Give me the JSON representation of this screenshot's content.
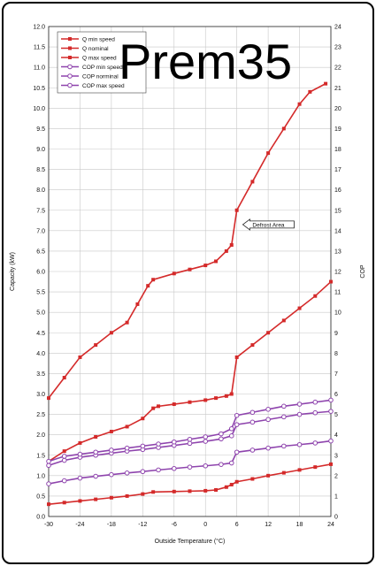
{
  "watermark": "Prem35",
  "chart_data": {
    "type": "line",
    "title": "",
    "xlabel": "Outside Temperature (°C)",
    "ylabel": "Capacity (kW)",
    "y2label": "COP",
    "xlim": [
      -30,
      24
    ],
    "ylim": [
      0,
      12
    ],
    "y2lim": [
      0,
      24
    ],
    "x_ticks": [
      "-30",
      "-24",
      "-18",
      "-12",
      "-6",
      "0",
      "6",
      "12",
      "18",
      "24"
    ],
    "y_ticks": [
      "0.0",
      "0.5",
      "1.0",
      "1.5",
      "2.0",
      "2.5",
      "3.0",
      "3.5",
      "4.0",
      "4.5",
      "5.0",
      "5.5",
      "6.0",
      "6.5",
      "7.0",
      "7.5",
      "8.0",
      "8.5",
      "9.0",
      "9.5",
      "10.0",
      "10.5",
      "11.0",
      "11.5",
      "12.0"
    ],
    "y2_ticks": [
      "0",
      "1",
      "2",
      "3",
      "4",
      "5",
      "6",
      "7",
      "8",
      "9",
      "10",
      "11",
      "12",
      "13",
      "14",
      "15",
      "16",
      "17",
      "18",
      "19",
      "20",
      "21",
      "22",
      "23",
      "24"
    ],
    "grid": true,
    "legend_position": "top-left",
    "annotation": "Defrost Area",
    "series": [
      {
        "name": "Q min speed",
        "axis": "left",
        "marker": "filled-square",
        "color": "#d42a2a",
        "x": [
          -30,
          -27,
          -24,
          -21,
          -18,
          -15,
          -12,
          -10,
          -6,
          -3,
          0,
          2,
          4,
          5,
          6,
          9,
          12,
          15,
          18,
          21,
          24
        ],
        "y": [
          0.3,
          0.34,
          0.38,
          0.42,
          0.46,
          0.5,
          0.55,
          0.6,
          0.61,
          0.62,
          0.63,
          0.65,
          0.72,
          0.78,
          0.85,
          0.92,
          1.0,
          1.07,
          1.14,
          1.21,
          1.28
        ]
      },
      {
        "name": "Q nominal",
        "axis": "left",
        "marker": "filled-square",
        "color": "#d42a2a",
        "x": [
          -30,
          -27,
          -24,
          -21,
          -18,
          -15,
          -12,
          -10,
          -9,
          -6,
          -3,
          0,
          2,
          4,
          5,
          6,
          9,
          12,
          15,
          18,
          21,
          24
        ],
        "y": [
          1.35,
          1.6,
          1.8,
          1.95,
          2.08,
          2.2,
          2.4,
          2.65,
          2.7,
          2.75,
          2.8,
          2.85,
          2.9,
          2.95,
          3.0,
          3.9,
          4.2,
          4.5,
          4.8,
          5.1,
          5.4,
          5.75
        ]
      },
      {
        "name": "Q max speed",
        "axis": "left",
        "marker": "filled-square",
        "color": "#d42a2a",
        "x": [
          -30,
          -27,
          -24,
          -21,
          -18,
          -15,
          -13,
          -11,
          -10,
          -6,
          -3,
          0,
          2,
          4,
          5,
          6,
          9,
          12,
          15,
          18,
          20,
          23
        ],
        "y": [
          2.9,
          3.4,
          3.9,
          4.2,
          4.5,
          4.75,
          5.2,
          5.65,
          5.8,
          5.95,
          6.05,
          6.15,
          6.25,
          6.5,
          6.65,
          7.5,
          8.2,
          8.9,
          9.5,
          10.1,
          10.4,
          10.6
        ]
      },
      {
        "name": "COP min speed",
        "axis": "right",
        "marker": "open-circle",
        "color": "#8e44ad",
        "x": [
          -30,
          -27,
          -24,
          -21,
          -18,
          -15,
          -12,
          -9,
          -6,
          -3,
          0,
          3,
          5,
          6,
          9,
          12,
          15,
          18,
          21,
          24
        ],
        "y": [
          1.6,
          1.75,
          1.88,
          1.97,
          2.05,
          2.13,
          2.2,
          2.28,
          2.35,
          2.42,
          2.48,
          2.55,
          2.62,
          3.15,
          3.25,
          3.35,
          3.45,
          3.52,
          3.6,
          3.7
        ]
      },
      {
        "name": "COP norminal",
        "axis": "right",
        "marker": "open-circle",
        "color": "#8e44ad",
        "x": [
          -30,
          -27,
          -24,
          -21,
          -18,
          -15,
          -12,
          -9,
          -6,
          -3,
          0,
          3,
          5,
          6,
          9,
          12,
          15,
          18,
          21,
          24
        ],
        "y": [
          2.5,
          2.75,
          2.9,
          3.0,
          3.1,
          3.2,
          3.28,
          3.38,
          3.48,
          3.58,
          3.68,
          3.8,
          3.95,
          4.5,
          4.62,
          4.75,
          4.88,
          5.0,
          5.08,
          5.15
        ]
      },
      {
        "name": "COP max speed",
        "axis": "right",
        "marker": "open-circle",
        "color": "#8e44ad",
        "x": [
          -30,
          -27,
          -24,
          -21,
          -18,
          -15,
          -12,
          -9,
          -6,
          -3,
          0,
          3,
          5,
          6,
          9,
          12,
          15,
          18,
          21,
          24
        ],
        "y": [
          2.7,
          2.95,
          3.05,
          3.15,
          3.25,
          3.35,
          3.45,
          3.55,
          3.65,
          3.78,
          3.9,
          4.05,
          4.3,
          4.95,
          5.1,
          5.25,
          5.4,
          5.5,
          5.6,
          5.7
        ]
      }
    ]
  }
}
